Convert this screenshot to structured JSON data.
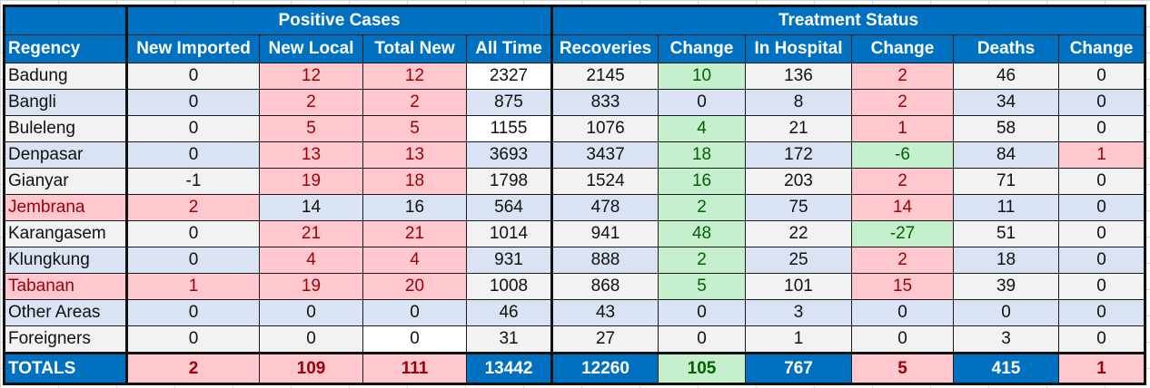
{
  "group_headers": {
    "positive_cases": "Positive Cases",
    "treatment_status": "Treatment Status"
  },
  "columns": [
    "Regency",
    "New Imported",
    "New Local",
    "Total New",
    "All Time",
    "Recoveries",
    "Change",
    "In Hospital",
    "Change",
    "Deaths",
    "Change"
  ],
  "rows": [
    {
      "cells": [
        "Badung",
        "0",
        "12",
        "12",
        "2327",
        "2145",
        "10",
        "136",
        "2",
        "46",
        "0"
      ],
      "styles": [
        "n",
        "n",
        "red",
        "red",
        "white",
        "n",
        "green",
        "n",
        "red",
        "n",
        "n"
      ]
    },
    {
      "cells": [
        "Bangli",
        "0",
        "2",
        "2",
        "875",
        "833",
        "0",
        "8",
        "2",
        "34",
        "0"
      ],
      "styles": [
        "n",
        "n",
        "red",
        "red",
        "n",
        "n",
        "n",
        "n",
        "red",
        "n",
        "n"
      ]
    },
    {
      "cells": [
        "Buleleng",
        "0",
        "5",
        "5",
        "1155",
        "1076",
        "4",
        "21",
        "1",
        "58",
        "0"
      ],
      "styles": [
        "n",
        "n",
        "red",
        "red",
        "white",
        "n",
        "green",
        "n",
        "red",
        "n",
        "n"
      ]
    },
    {
      "cells": [
        "Denpasar",
        "0",
        "13",
        "13",
        "3693",
        "3437",
        "18",
        "172",
        "-6",
        "84",
        "1"
      ],
      "styles": [
        "n",
        "n",
        "red",
        "red",
        "n",
        "n",
        "green",
        "n",
        "green",
        "n",
        "red"
      ]
    },
    {
      "cells": [
        "Gianyar",
        "-1",
        "19",
        "18",
        "1798",
        "1524",
        "16",
        "203",
        "2",
        "71",
        "0"
      ],
      "styles": [
        "n",
        "n",
        "red",
        "red",
        "n",
        "n",
        "green",
        "n",
        "red",
        "n",
        "n"
      ]
    },
    {
      "cells": [
        "Jembrana",
        "2",
        "14",
        "16",
        "564",
        "478",
        "2",
        "75",
        "14",
        "11",
        "0"
      ],
      "styles": [
        "red",
        "red",
        "n",
        "n",
        "n",
        "n",
        "green",
        "n",
        "red",
        "n",
        "n"
      ]
    },
    {
      "cells": [
        "Karangasem",
        "0",
        "21",
        "21",
        "1014",
        "941",
        "48",
        "22",
        "-27",
        "51",
        "0"
      ],
      "styles": [
        "n",
        "n",
        "red",
        "red",
        "n",
        "n",
        "green",
        "n",
        "green",
        "n",
        "n"
      ]
    },
    {
      "cells": [
        "Klungkung",
        "0",
        "4",
        "4",
        "931",
        "888",
        "2",
        "25",
        "2",
        "18",
        "0"
      ],
      "styles": [
        "n",
        "n",
        "red",
        "red",
        "n",
        "n",
        "green",
        "n",
        "red",
        "n",
        "n"
      ]
    },
    {
      "cells": [
        "Tabanan",
        "1",
        "19",
        "20",
        "1008",
        "868",
        "5",
        "101",
        "15",
        "39",
        "0"
      ],
      "styles": [
        "red",
        "red",
        "red",
        "red",
        "n",
        "n",
        "green",
        "n",
        "red",
        "n",
        "n"
      ]
    },
    {
      "cells": [
        "Other Areas",
        "0",
        "0",
        "0",
        "46",
        "43",
        "0",
        "3",
        "0",
        "0",
        "0"
      ],
      "styles": [
        "n",
        "n",
        "n",
        "n",
        "n",
        "n",
        "n",
        "n",
        "n",
        "n",
        "n"
      ]
    },
    {
      "cells": [
        "Foreigners",
        "0",
        "0",
        "0",
        "31",
        "27",
        "0",
        "1",
        "0",
        "3",
        "0"
      ],
      "styles": [
        "n",
        "n",
        "n",
        "white",
        "n",
        "n",
        "n",
        "n",
        "n",
        "n",
        "n"
      ]
    }
  ],
  "totals": {
    "cells": [
      "TOTALS",
      "2",
      "109",
      "111",
      "13442",
      "12260",
      "105",
      "767",
      "5",
      "415",
      "1"
    ],
    "styles": [
      "blue",
      "tot-red",
      "tot-red",
      "tot-red",
      "blue",
      "blue",
      "tot-green",
      "blue",
      "tot-red",
      "blue",
      "tot-red"
    ]
  },
  "colors": {
    "header_blue": "#0070c0",
    "stripe_gray": "#f2f2f2",
    "stripe_blue": "#dae3f3",
    "increase_red_fill": "#ffc7ce",
    "increase_red_text": "#9c0006",
    "decrease_green_fill": "#c6efce",
    "decrease_green_text": "#006100"
  }
}
